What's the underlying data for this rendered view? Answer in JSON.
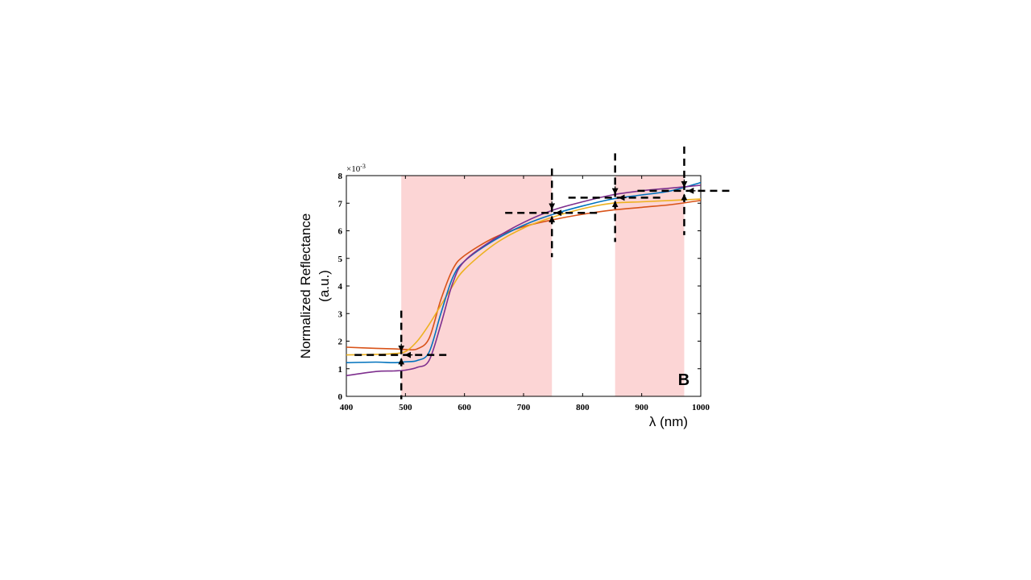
{
  "chart_data": {
    "type": "line",
    "panel_label": "B",
    "xlabel": "λ (nm)",
    "ylabel_line1": "Normalized Reflectance",
    "ylabel_line2": "(a.u.)",
    "y_exponent": "×10",
    "y_exponent_power": "-3",
    "xlim": [
      400,
      1000
    ],
    "ylim": [
      0,
      8
    ],
    "x_ticks": [
      400,
      500,
      600,
      700,
      800,
      900,
      1000
    ],
    "y_ticks": [
      0,
      1,
      2,
      3,
      4,
      5,
      6,
      7,
      8
    ],
    "shaded_ranges": [
      [
        493,
        748
      ],
      [
        855,
        972
      ]
    ],
    "shade_color": "#fcd5d5",
    "marker_points": [
      [
        493,
        1.5
      ],
      [
        748,
        6.65
      ],
      [
        855,
        7.2
      ],
      [
        972,
        7.45
      ]
    ],
    "x": [
      400,
      450,
      480,
      500,
      520,
      540,
      560,
      580,
      600,
      650,
      700,
      750,
      800,
      850,
      900,
      950,
      1000
    ],
    "series": [
      {
        "color": "#d95319",
        "values": [
          1.78,
          1.74,
          1.72,
          1.7,
          1.72,
          2.1,
          3.5,
          4.6,
          5.1,
          5.75,
          6.15,
          6.4,
          6.6,
          6.75,
          6.85,
          6.95,
          7.1
        ]
      },
      {
        "color": "#edb120",
        "values": [
          1.5,
          1.52,
          1.55,
          1.62,
          2.0,
          2.6,
          3.3,
          4.0,
          4.6,
          5.5,
          6.1,
          6.5,
          6.8,
          7.0,
          7.05,
          7.1,
          7.15
        ]
      },
      {
        "color": "#0072bd",
        "values": [
          1.22,
          1.24,
          1.22,
          1.25,
          1.3,
          1.6,
          3.0,
          4.3,
          4.9,
          5.65,
          6.2,
          6.6,
          6.9,
          7.15,
          7.3,
          7.45,
          7.75
        ]
      },
      {
        "color": "#7e2f8e",
        "values": [
          0.75,
          0.9,
          0.92,
          0.95,
          1.05,
          1.3,
          2.6,
          4.1,
          4.9,
          5.7,
          6.3,
          6.75,
          7.05,
          7.3,
          7.45,
          7.55,
          7.65
        ]
      }
    ]
  }
}
